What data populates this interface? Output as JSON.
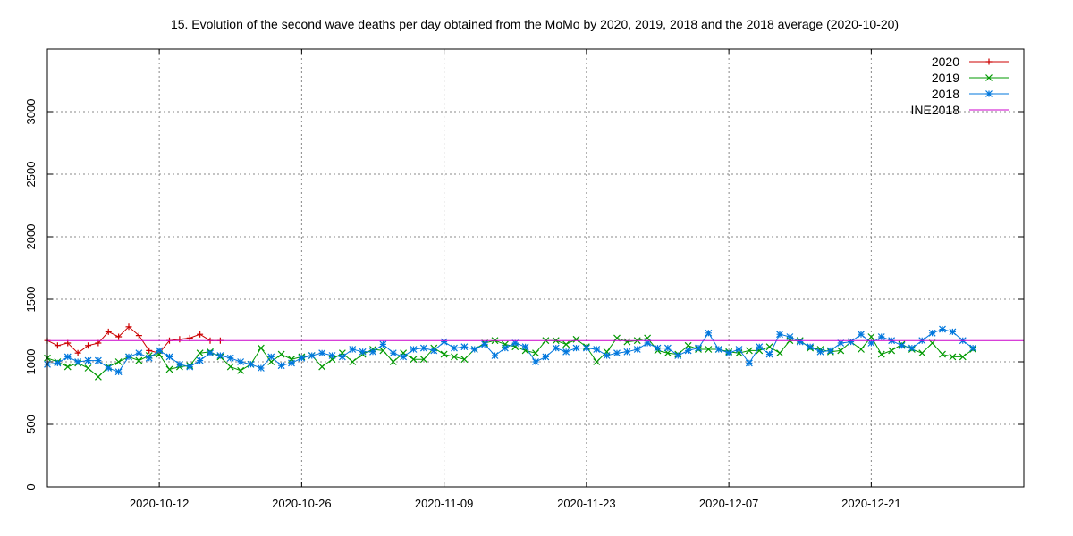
{
  "chart_data": {
    "type": "line",
    "title": "15. Evolution of the second wave deaths per day obtained from the MoMo by 2020, 2019, 2018 and the 2018 average (2020-10-20)",
    "xlabel": "",
    "ylabel": "",
    "x_range": [
      "2020-10-01",
      "2021-01-05"
    ],
    "ylim": [
      0,
      3500
    ],
    "y_ticks": [
      0,
      500,
      1000,
      1500,
      2000,
      2500,
      3000
    ],
    "x_ticks": [
      "2020-10-12",
      "2020-10-26",
      "2020-11-09",
      "2020-11-23",
      "2020-12-07",
      "2020-12-21"
    ],
    "grid": true,
    "legend_position": "top-right",
    "x_start": "2020-10-01",
    "series": [
      {
        "name": "2020",
        "color": "#cc0000",
        "marker": "plus",
        "values": [
          1170,
          1130,
          1150,
          1070,
          1130,
          1150,
          1240,
          1200,
          1280,
          1210,
          1090,
          1070,
          1170,
          1180,
          1190,
          1220,
          1170,
          1170
        ]
      },
      {
        "name": "2019",
        "color": "#009900",
        "marker": "x",
        "values": [
          1030,
          1000,
          960,
          990,
          950,
          880,
          960,
          1000,
          1040,
          1010,
          1050,
          1060,
          940,
          960,
          970,
          1070,
          1080,
          1040,
          960,
          930,
          980,
          1110,
          1000,
          1060,
          1020,
          1040,
          1050,
          960,
          1020,
          1070,
          1000,
          1060,
          1100,
          1090,
          1000,
          1070,
          1020,
          1020,
          1110,
          1060,
          1040,
          1020,
          1100,
          1150,
          1170,
          1140,
          1120,
          1090,
          1070,
          1170,
          1170,
          1140,
          1180,
          1120,
          1000,
          1080,
          1190,
          1160,
          1170,
          1190,
          1090,
          1070,
          1060,
          1130,
          1100,
          1100,
          1100,
          1080,
          1070,
          1090,
          1090,
          1120,
          1070,
          1170,
          1170,
          1110,
          1100,
          1080,
          1090,
          1160,
          1100,
          1200,
          1060,
          1090,
          1140,
          1100,
          1070,
          1150,
          1060,
          1040,
          1040,
          1100
        ]
      },
      {
        "name": "2018",
        "color": "#0077dd",
        "marker": "star",
        "values": [
          980,
          990,
          1040,
          1000,
          1010,
          1010,
          950,
          920,
          1040,
          1070,
          1030,
          1090,
          1040,
          980,
          960,
          1010,
          1070,
          1050,
          1030,
          1000,
          980,
          950,
          1040,
          970,
          990,
          1030,
          1050,
          1070,
          1050,
          1040,
          1100,
          1080,
          1080,
          1140,
          1070,
          1040,
          1100,
          1110,
          1090,
          1160,
          1110,
          1120,
          1100,
          1140,
          1050,
          1110,
          1150,
          1120,
          1000,
          1040,
          1110,
          1080,
          1110,
          1110,
          1100,
          1050,
          1070,
          1080,
          1100,
          1150,
          1110,
          1110,
          1050,
          1090,
          1110,
          1230,
          1100,
          1070,
          1100,
          990,
          1120,
          1060,
          1220,
          1200,
          1160,
          1120,
          1080,
          1090,
          1150,
          1160,
          1220,
          1150,
          1200,
          1170,
          1130,
          1110,
          1170,
          1230,
          1260,
          1240,
          1170,
          1110
        ]
      },
      {
        "name": "INE2018",
        "color": "#cc00cc",
        "marker": "none",
        "constant": 1170
      }
    ]
  }
}
